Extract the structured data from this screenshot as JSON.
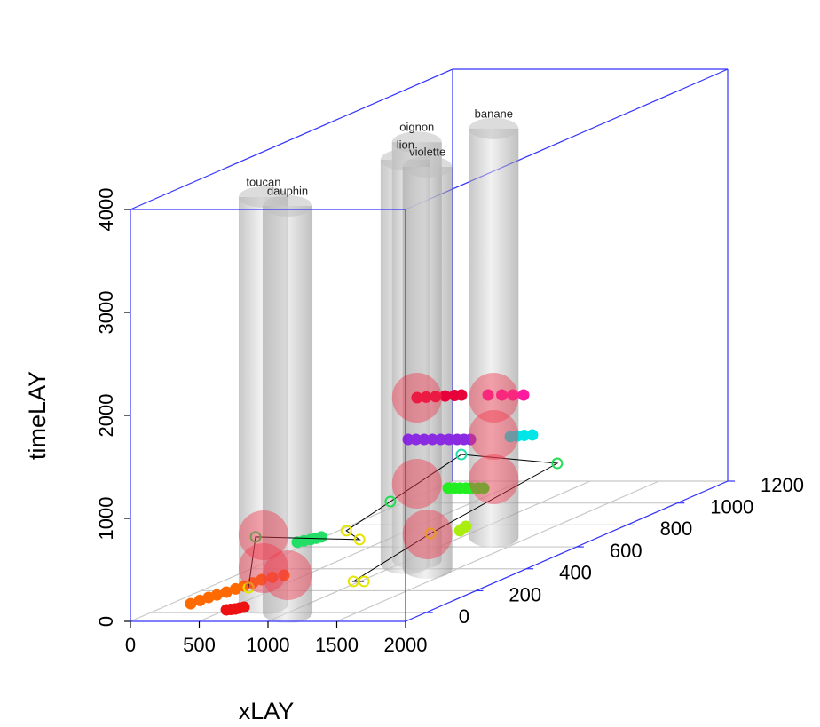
{
  "chart_data": {
    "type": "scatter3d",
    "xlabel": "xLAY",
    "zlabel": "timeLAY",
    "xlim": [
      0,
      2000
    ],
    "ylim": [
      -80,
      1200
    ],
    "zlim": [
      0,
      4000
    ],
    "xticks": [
      0,
      500,
      1000,
      1500,
      2000
    ],
    "yticks": [
      0,
      200,
      400,
      600,
      800,
      1000,
      1200
    ],
    "zticks": [
      0,
      1000,
      2000,
      3000,
      4000
    ],
    "grid": true,
    "box_color": "#3333ff",
    "cylinders": {
      "labels": [
        "toucan",
        "dauphin",
        "oignon",
        "lion",
        "violette",
        "banane"
      ],
      "x": [
        671,
        994,
        1045,
        1035,
        1270,
        1232
      ],
      "y": [
        82,
        1,
        487,
        447,
        406,
        690
      ],
      "z": [
        3948,
        3948,
        4050,
        3922,
        3897,
        3966
      ],
      "color": "#c0c0c0"
    },
    "spheres": {
      "color": "#f03c50",
      "x": [
        671,
        671,
        994,
        1045,
        1045,
        1232,
        1232,
        1232,
        1270
      ],
      "y": [
        82,
        82,
        1,
        487,
        487,
        690,
        690,
        690,
        406
      ],
      "z": [
        664,
        345,
        362,
        1569,
        733,
        1353,
        991,
        560,
        328
      ]
    },
    "series": [
      {
        "color": "#ff6a00",
        "x": [
          246,
          258,
          271,
          290,
          311,
          325,
          337,
          350,
          361,
          400,
          448
        ],
        "y": [
          25,
          55,
          82,
          105,
          131,
          160,
          187,
          215,
          244,
          265,
          285
        ],
        "z": [
          60,
          60,
          60,
          60,
          60,
          60,
          60,
          60,
          60,
          60,
          60
        ]
      },
      {
        "color": "#ee1111",
        "x": [
          505,
          530,
          555,
          570,
          588
        ],
        "y": [
          25,
          29,
          33,
          42,
          50
        ],
        "z": [
          0,
          0,
          0,
          0,
          0
        ]
      },
      {
        "color": "#22dd66",
        "x": [
          1094,
          1120,
          1147,
          1165,
          1181
        ],
        "y": [
          -15,
          -3,
          9,
          21,
          33
        ],
        "z": [
          700,
          700,
          700,
          700,
          700
        ]
      },
      {
        "color": "#22ee22",
        "x": [
          1633,
          1680,
          1720,
          1762,
          1800,
          1850,
          1891
        ],
        "y": [
          290,
          290,
          290,
          290,
          290,
          290,
          290
        ],
        "z": [
          900,
          900,
          900,
          900,
          900,
          900,
          900
        ]
      },
      {
        "color": "#aaee11",
        "x": [
          1397,
          1385,
          1368
        ],
        "y": [
          465,
          485,
          505
        ],
        "z": [
          300,
          300,
          300
        ]
      },
      {
        "color": "#8a2be2",
        "x": [
          1044,
          1100,
          1160,
          1220,
          1280,
          1340,
          1400,
          1450,
          1496
        ],
        "y": [
          453,
          453,
          453,
          453,
          453,
          453,
          453,
          453,
          453
        ],
        "z": [
          1200,
          1200,
          1200,
          1200,
          1200,
          1200,
          1200,
          1200,
          1200
        ]
      },
      {
        "color": "#00e5e5",
        "x": [
          1741,
          1780,
          1820,
          1872
        ],
        "y": [
          478,
          484,
          490,
          494
        ],
        "z": [
          1200,
          1200,
          1200,
          1200
        ]
      },
      {
        "color": "#e8003a",
        "x": [
          1443,
          1500,
          1560,
          1620,
          1680,
          1722
        ],
        "y": [
          270,
          275,
          280,
          285,
          290,
          294
        ],
        "z": [
          1800,
          1800,
          1800,
          1800,
          1800,
          1800
        ]
      },
      {
        "color": "#ff1aa0",
        "x": [
          1400,
          1500,
          1580,
          1658
        ],
        "y": [
          576,
          576,
          576,
          576
        ],
        "z": [
          1500,
          1500,
          1500,
          1500
        ]
      },
      {
        "open": true,
        "line": true,
        "colors": [
          "#e5e500",
          "#22dd55",
          "#e5e500",
          "#e5e500",
          "#22dd55",
          "#22ddaa",
          "#22dd55",
          "#e5e500",
          "#e5e500",
          "#e5e500"
        ],
        "x": [
          639,
          703,
          645,
          400,
          1608,
          1855,
          1840,
          1058,
          1297,
          1374
        ],
        "y": [
          40,
          33,
          478,
          559,
          74,
          221,
          610,
          534,
          97,
          97
        ],
        "z": [
          200,
          700,
          200,
          200,
          1000,
          1300,
          800,
          200,
          200,
          200
        ]
      }
    ]
  }
}
